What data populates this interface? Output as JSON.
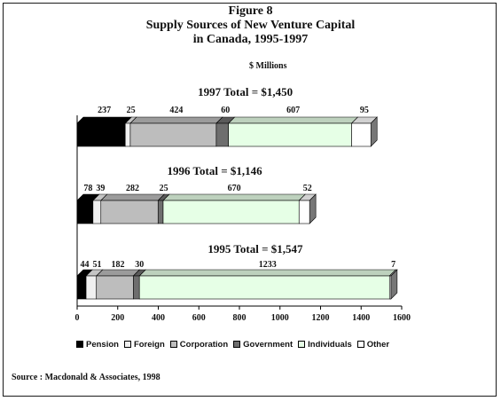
{
  "chart_data": {
    "type": "bar",
    "orientation": "horizontal",
    "stacked": true,
    "title": [
      "Figure 8",
      "Supply Sources of New Venture Capital",
      "in Canada, 1995-1997"
    ],
    "units": "$ Millions",
    "source": "Source : Macdonald & Associates, 1998",
    "xlim": [
      0,
      1600
    ],
    "xticks": [
      "0",
      "200",
      "400",
      "600",
      "800",
      "1000",
      "1200",
      "1400",
      "1600"
    ],
    "grid": false,
    "legend_position": "bottom",
    "series": [
      {
        "name": "Pension",
        "color": "#000000"
      },
      {
        "name": "Foreign",
        "color": "#f0f0f0"
      },
      {
        "name": "Corporation",
        "color": "#bdbdbd"
      },
      {
        "name": "Government",
        "color": "#6e6e6e"
      },
      {
        "name": "Individuals",
        "color": "#e6ffe6"
      },
      {
        "name": "Other",
        "color": "#ffffff"
      }
    ],
    "bars": [
      {
        "label": "1997 Total = $1,450",
        "values": [
          237,
          25,
          424,
          60,
          607,
          95
        ],
        "value_labels": [
          "237",
          "25",
          "424",
          "60",
          "607",
          "95"
        ]
      },
      {
        "label": "1996  Total = $1,146",
        "values": [
          78,
          39,
          282,
          25,
          670,
          52
        ],
        "value_labels": [
          "78",
          "39",
          "282",
          "25",
          "670",
          "52"
        ]
      },
      {
        "label": "1995 Total = $1,547",
        "values": [
          44,
          51,
          182,
          30,
          1233,
          7
        ],
        "value_labels": [
          "44",
          "51",
          "182",
          "30",
          "1233",
          "7"
        ]
      }
    ]
  }
}
